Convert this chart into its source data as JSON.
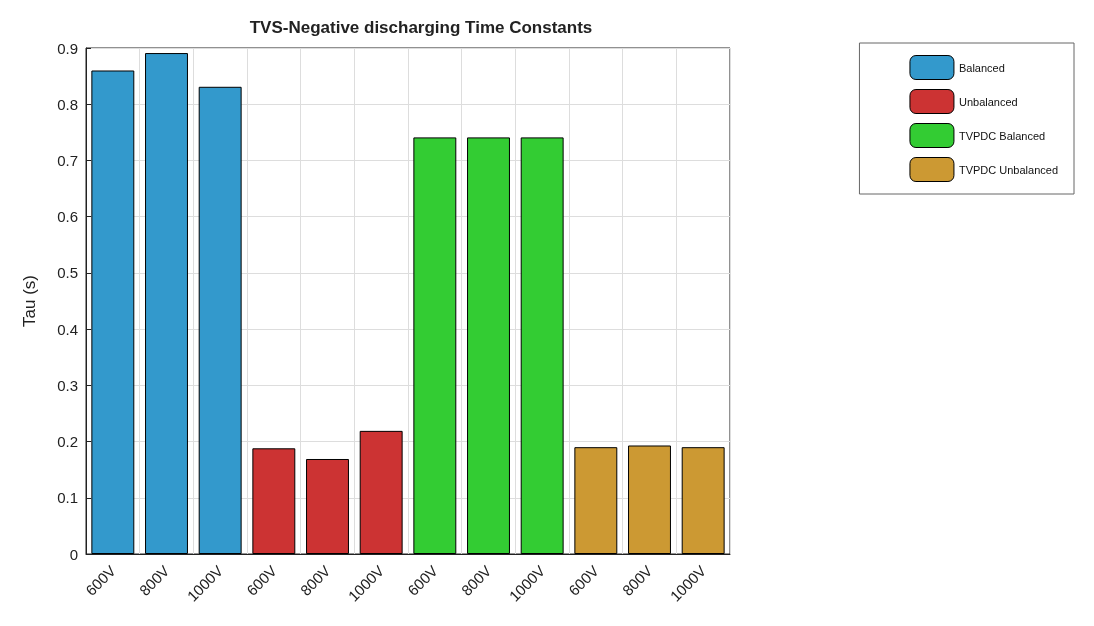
{
  "chart_data": {
    "type": "bar",
    "title": "TVS-Negative discharging Time Constants",
    "ylabel": "Tau (s)",
    "categories": [
      "600V",
      "800V",
      "1000V",
      "600V",
      "800V",
      "1000V",
      "600V",
      "800V",
      "1000V",
      "600V",
      "800V",
      "1000V"
    ],
    "series": [
      {
        "name": "Balanced",
        "color": "#3399cc",
        "values": [
          0.86,
          0.891,
          0.831,
          null,
          null,
          null,
          null,
          null,
          null,
          null,
          null,
          null
        ]
      },
      {
        "name": "Unbalanced",
        "color": "#cc3333",
        "values": [
          null,
          null,
          null,
          0.188,
          0.169,
          0.219,
          null,
          null,
          null,
          null,
          null,
          null
        ]
      },
      {
        "name": "TVPDC Balanced",
        "color": "#33cc33",
        "values": [
          null,
          null,
          null,
          null,
          null,
          null,
          0.741,
          0.741,
          0.741,
          null,
          null,
          null
        ]
      },
      {
        "name": "TVPDC Unbalanced",
        "color": "#cc9933",
        "values": [
          null,
          null,
          null,
          null,
          null,
          null,
          null,
          null,
          null,
          0.19,
          0.193,
          0.19
        ]
      }
    ],
    "ylim": [
      0,
      0.9
    ],
    "yticks": [
      0,
      0.1,
      0.2,
      0.3,
      0.4,
      0.5,
      0.6,
      0.7,
      0.8,
      0.9
    ],
    "grid": true,
    "legend": "top right"
  }
}
